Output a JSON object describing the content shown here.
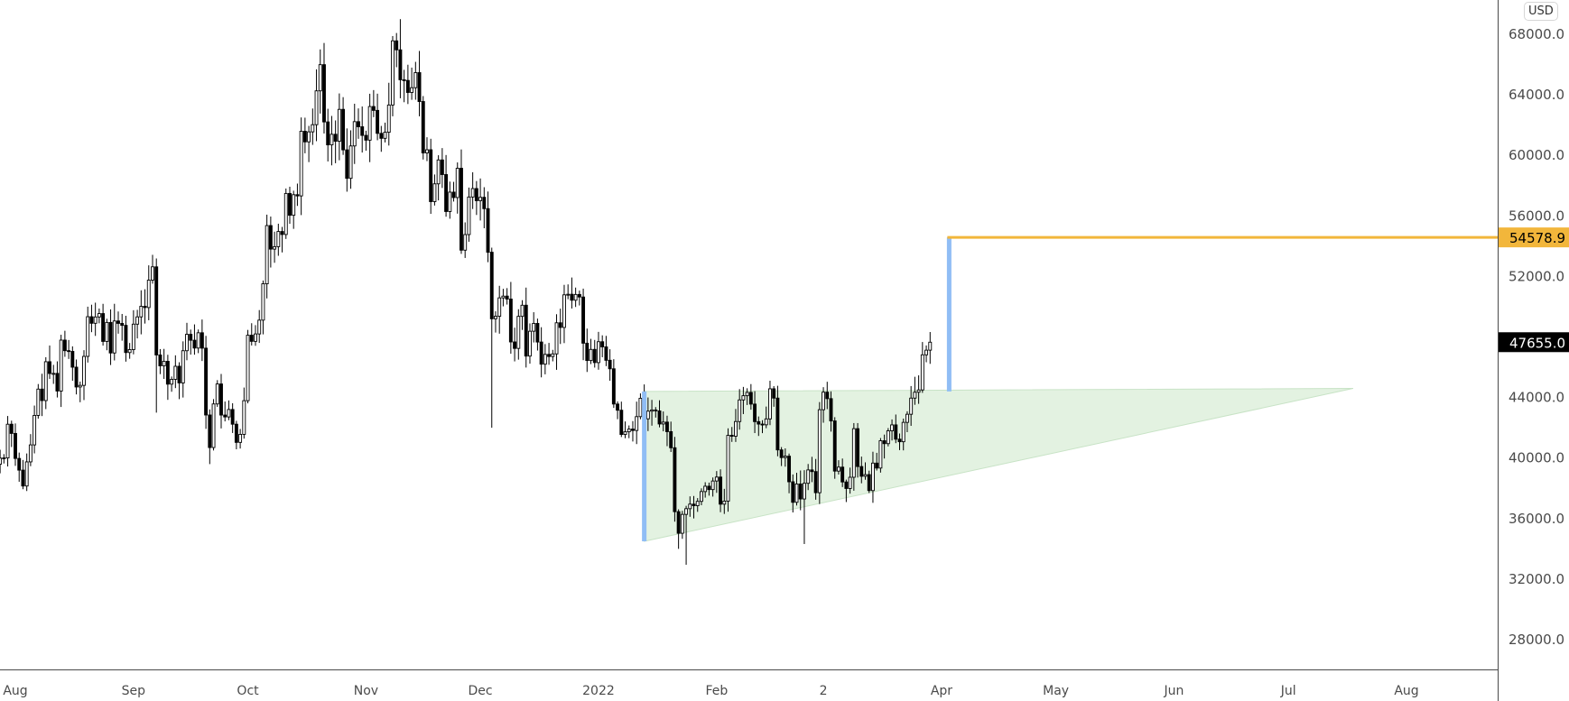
{
  "currency_label": "USD",
  "chart_data": {
    "type": "candlestick",
    "title": "",
    "xlabel": "",
    "ylabel": "",
    "ylim": [
      26000,
      70000
    ],
    "grid": false,
    "y_ticks": [
      "68000.0",
      "64000.0",
      "60000.0",
      "56000.0",
      "52000.0",
      "44000.0",
      "40000.0",
      "36000.0",
      "32000.0",
      "28000.0"
    ],
    "x_ticks": [
      {
        "label": "Aug",
        "date": "2021-08-01"
      },
      {
        "label": "Sep",
        "date": "2021-09-01"
      },
      {
        "label": "Oct",
        "date": "2021-10-01"
      },
      {
        "label": "Nov",
        "date": "2021-11-01"
      },
      {
        "label": "Dec",
        "date": "2021-12-01"
      },
      {
        "label": "2022",
        "date": "2022-01-01"
      },
      {
        "label": "Feb",
        "date": "2022-02-01"
      },
      {
        "label": "2",
        "date": "2022-03-01"
      },
      {
        "label": "Apr",
        "date": "2022-04-01"
      },
      {
        "label": "May",
        "date": "2022-05-01"
      },
      {
        "label": "Jun",
        "date": "2022-06-01"
      },
      {
        "label": "Jul",
        "date": "2022-07-01"
      },
      {
        "label": "Aug",
        "date": "2022-08-01"
      }
    ],
    "up_color": "#ffffff",
    "down_color": "#000000",
    "wick_color": "#000000",
    "months": [
      {
        "month": "2021-07",
        "first_day": 28,
        "close": [
          39995,
          40008,
          42235,
          41626
        ]
      },
      {
        "month": "2021-08",
        "first_day": 1,
        "close": [
          39974,
          39201,
          38152,
          39747,
          40869,
          42816,
          44555,
          43798,
          46365,
          45585,
          45593,
          44428,
          47793,
          47096,
          47047,
          46004,
          44695,
          44801,
          46717,
          49339,
          48905,
          49321,
          49546,
          47706,
          48960,
          46942,
          49058,
          48897,
          48767,
          46970,
          47166
        ]
      },
      {
        "month": "2021-09",
        "first_day": 1,
        "close": [
          48847,
          49327,
          50025,
          49944,
          51753,
          52633,
          46811,
          46091,
          46391,
          44883,
          45201,
          46063,
          44963,
          47092,
          48176,
          47784,
          47267,
          48278,
          47260,
          42844,
          40694,
          43574,
          44895,
          42840,
          42717,
          43208,
          42236,
          41035,
          41564,
          43790
        ]
      },
      {
        "month": "2021-10",
        "first_day": 1,
        "close": [
          48116,
          47711,
          48200,
          49112,
          51514,
          55361,
          53805,
          53967,
          54969,
          54771,
          57484,
          56041,
          57401,
          57321,
          61593,
          60892,
          61553,
          62026,
          64262,
          65993,
          62210,
          60693,
          61393,
          60931,
          63039,
          60364,
          58483,
          60622,
          62228,
          61889,
          61318
        ]
      },
      {
        "month": "2021-11",
        "first_day": 1,
        "close": [
          61005,
          63227,
          62971,
          61453,
          61125,
          61528,
          63327,
          67566,
          66972,
          64995,
          64950,
          64155,
          64470,
          65467,
          63557,
          60161,
          60369,
          56943,
          58119,
          59697,
          58731,
          56289,
          57570,
          57212,
          59147,
          53736,
          54765,
          57248,
          57806,
          57005
        ]
      },
      {
        "month": "2021-12",
        "first_day": 1,
        "close": [
          57229,
          56478,
          53598,
          49200,
          49368,
          50583,
          50700,
          50505,
          47672,
          47244,
          49362,
          50098,
          46737,
          48379,
          48896,
          47666,
          46203,
          46849,
          46708,
          46881,
          48937,
          48629,
          50784,
          50822,
          50429,
          50809,
          50640,
          47588,
          46444,
          47178,
          46307
        ]
      },
      {
        "month": "2022-01",
        "first_day": 1,
        "close": [
          47686,
          47345,
          46459,
          45897,
          43569,
          43160,
          41558,
          41734,
          41912,
          41821,
          42736,
          43949,
          42591,
          43099,
          43177,
          43113,
          42250,
          42375,
          41744,
          40680,
          36457,
          35030,
          36276,
          36654,
          36954,
          36852,
          37138,
          37784,
          38138,
          37917,
          38483
        ]
      },
      {
        "month": "2022-02",
        "first_day": 1,
        "close": [
          38743,
          36952,
          37154,
          41500,
          41441,
          42412,
          43840,
          44118,
          44338,
          43565,
          42407,
          42244,
          42197,
          42586,
          44575,
          43961,
          40538,
          40030,
          40122,
          38431,
          37075,
          38286,
          37296,
          38332,
          39214,
          39105,
          37710,
          43194
        ]
      },
      {
        "month": "2022-03",
        "first_day": 1,
        "close": [
          44354,
          43925,
          42452,
          39137,
          39400,
          38420,
          37988,
          38730,
          41941,
          39439,
          38795,
          38905,
          37850,
          39666,
          39338,
          41143,
          40951,
          41801,
          42191,
          41247,
          41078,
          42358,
          42893,
          43960,
          44349,
          44500,
          46820,
          47128,
          47655
        ]
      }
    ],
    "notable_lows": {
      "2021-09-07": 43000,
      "2021-09-21": 39600,
      "2021-12-04": 42000,
      "2022-01-22": 34000,
      "2022-01-24": 32950,
      "2022-02-24": 34320
    },
    "notable_highs": {
      "2021-11-10": 69000,
      "2021-10-20": 67000
    },
    "last_price": {
      "label": "47655.0",
      "value": 47655,
      "color": "#000000"
    },
    "drawings": {
      "triangle": {
        "points": [
          {
            "date": "2022-01-13",
            "price": 44400
          },
          {
            "date": "2022-07-18",
            "price": 44600
          },
          {
            "date": "2022-01-13",
            "price": 34500
          }
        ],
        "fill": "#e3f2e1",
        "stroke": "#c8e3c6"
      },
      "measure_left": {
        "date": "2022-01-13",
        "from": 34500,
        "to": 44400,
        "color": "#90bdf5"
      },
      "measure_right": {
        "date": "2022-04-03",
        "from": 44400,
        "to": 54578.9,
        "color": "#90bdf5"
      },
      "target_line": {
        "from_date": "2022-04-03",
        "price": 54578.9,
        "label": "54578.9",
        "color": "#f2b63b"
      }
    }
  }
}
